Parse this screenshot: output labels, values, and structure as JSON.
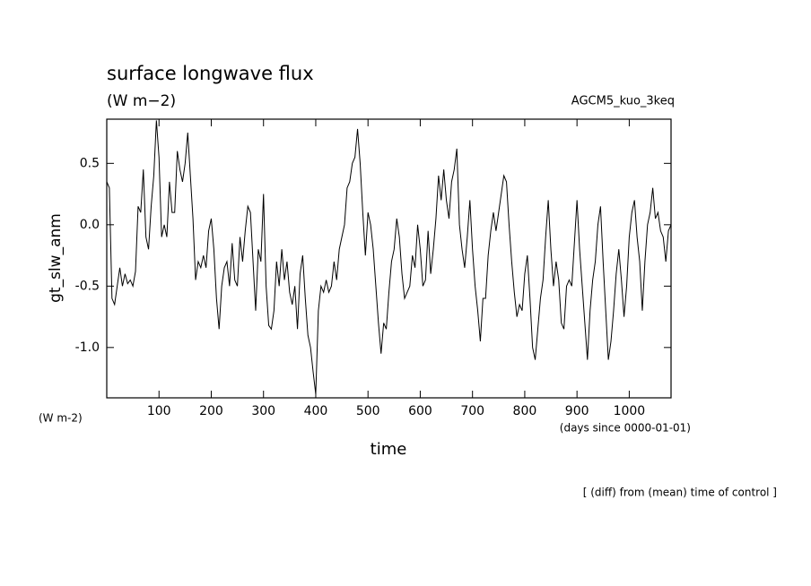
{
  "chart_data": {
    "type": "line",
    "title": "surface longwave flux",
    "subtitle": "(W m−2)",
    "annotation_right": "AGCM5_kuo_3keq",
    "y_label": "gt_slw_anm",
    "y_unit": "(W m-2)",
    "x_unit": "(days since 0000-01-01)",
    "x_label": "time",
    "footnote": "[ (diff) from (mean) time of control ]",
    "color": "#000000",
    "xlim": [
      0,
      1080
    ],
    "ylim": [
      -1.41,
      0.86
    ],
    "xticks": [
      100,
      200,
      300,
      400,
      500,
      600,
      700,
      800,
      900,
      1000
    ],
    "yticks": [
      0.5,
      {
        "value": 0,
        "label": "0.0"
      },
      -0.5,
      {
        "value": -1,
        "label": "-1.0"
      }
    ],
    "x": [
      0,
      5,
      10,
      15,
      20,
      25,
      30,
      35,
      40,
      45,
      50,
      55,
      60,
      65,
      70,
      75,
      80,
      85,
      90,
      95,
      100,
      105,
      110,
      115,
      120,
      125,
      130,
      135,
      140,
      145,
      150,
      155,
      160,
      165,
      170,
      175,
      180,
      185,
      190,
      195,
      200,
      205,
      210,
      215,
      220,
      225,
      230,
      235,
      240,
      245,
      250,
      255,
      260,
      265,
      270,
      275,
      280,
      285,
      290,
      295,
      300,
      305,
      310,
      315,
      320,
      325,
      330,
      335,
      340,
      345,
      350,
      355,
      360,
      365,
      370,
      375,
      380,
      385,
      390,
      395,
      400,
      405,
      410,
      415,
      420,
      425,
      430,
      435,
      440,
      445,
      450,
      455,
      460,
      465,
      470,
      475,
      480,
      485,
      490,
      495,
      500,
      505,
      510,
      515,
      520,
      525,
      530,
      535,
      540,
      545,
      550,
      555,
      560,
      565,
      570,
      575,
      580,
      585,
      590,
      595,
      600,
      605,
      610,
      615,
      620,
      625,
      630,
      635,
      640,
      645,
      650,
      655,
      660,
      665,
      670,
      675,
      680,
      685,
      690,
      695,
      700,
      705,
      710,
      715,
      720,
      725,
      730,
      735,
      740,
      745,
      750,
      755,
      760,
      765,
      770,
      775,
      780,
      785,
      790,
      795,
      800,
      805,
      810,
      815,
      820,
      825,
      830,
      835,
      840,
      845,
      850,
      855,
      860,
      865,
      870,
      875,
      880,
      885,
      890,
      895,
      900,
      905,
      910,
      915,
      920,
      925,
      930,
      935,
      940,
      945,
      950,
      955,
      960,
      965,
      970,
      975,
      980,
      985,
      990,
      995,
      1000,
      1005,
      1010,
      1015,
      1020,
      1025,
      1030,
      1035,
      1040,
      1045,
      1050,
      1055,
      1060,
      1065,
      1070,
      1075,
      1080
    ],
    "values": [
      0.35,
      0.3,
      -0.6,
      -0.65,
      -0.5,
      -0.35,
      -0.5,
      -0.4,
      -0.48,
      -0.45,
      -0.5,
      -0.38,
      0.15,
      0.1,
      0.45,
      -0.1,
      -0.2,
      0.15,
      0.4,
      0.85,
      0.55,
      -0.1,
      0.0,
      -0.1,
      0.35,
      0.1,
      0.1,
      0.6,
      0.45,
      0.35,
      0.5,
      0.75,
      0.4,
      0.05,
      -0.45,
      -0.3,
      -0.35,
      -0.25,
      -0.35,
      -0.05,
      0.05,
      -0.2,
      -0.6,
      -0.85,
      -0.5,
      -0.35,
      -0.3,
      -0.5,
      -0.15,
      -0.45,
      -0.5,
      -0.1,
      -0.3,
      -0.05,
      0.15,
      0.1,
      -0.3,
      -0.7,
      -0.2,
      -0.3,
      0.25,
      -0.5,
      -0.82,
      -0.85,
      -0.7,
      -0.3,
      -0.5,
      -0.2,
      -0.45,
      -0.3,
      -0.55,
      -0.65,
      -0.5,
      -0.85,
      -0.4,
      -0.25,
      -0.6,
      -0.9,
      -1.0,
      -1.2,
      -1.38,
      -0.7,
      -0.5,
      -0.55,
      -0.45,
      -0.55,
      -0.5,
      -0.3,
      -0.45,
      -0.2,
      -0.1,
      0.0,
      0.3,
      0.35,
      0.5,
      0.55,
      0.78,
      0.5,
      0.1,
      -0.25,
      0.1,
      0.0,
      -0.2,
      -0.5,
      -0.8,
      -1.05,
      -0.8,
      -0.85,
      -0.55,
      -0.3,
      -0.2,
      0.05,
      -0.1,
      -0.4,
      -0.6,
      -0.55,
      -0.5,
      -0.25,
      -0.35,
      0.0,
      -0.2,
      -0.5,
      -0.45,
      -0.05,
      -0.4,
      -0.2,
      0.05,
      0.4,
      0.2,
      0.45,
      0.2,
      0.05,
      0.35,
      0.45,
      0.62,
      0.0,
      -0.2,
      -0.35,
      -0.1,
      0.2,
      -0.2,
      -0.5,
      -0.7,
      -0.95,
      -0.6,
      -0.6,
      -0.25,
      -0.05,
      0.1,
      -0.05,
      0.1,
      0.25,
      0.4,
      0.35,
      0.0,
      -0.3,
      -0.55,
      -0.75,
      -0.65,
      -0.7,
      -0.4,
      -0.25,
      -0.6,
      -1.0,
      -1.1,
      -0.85,
      -0.6,
      -0.45,
      -0.1,
      0.2,
      -0.2,
      -0.5,
      -0.3,
      -0.45,
      -0.8,
      -0.85,
      -0.5,
      -0.45,
      -0.5,
      -0.15,
      0.2,
      -0.2,
      -0.5,
      -0.8,
      -1.1,
      -0.7,
      -0.45,
      -0.3,
      0.0,
      0.15,
      -0.3,
      -0.7,
      -1.1,
      -0.95,
      -0.7,
      -0.4,
      -0.2,
      -0.45,
      -0.75,
      -0.5,
      -0.1,
      0.1,
      0.2,
      -0.1,
      -0.3,
      -0.7,
      -0.3,
      0.0,
      0.1,
      0.3,
      0.05,
      0.1,
      -0.05,
      -0.1,
      -0.3,
      -0.05,
      0.0
    ]
  }
}
